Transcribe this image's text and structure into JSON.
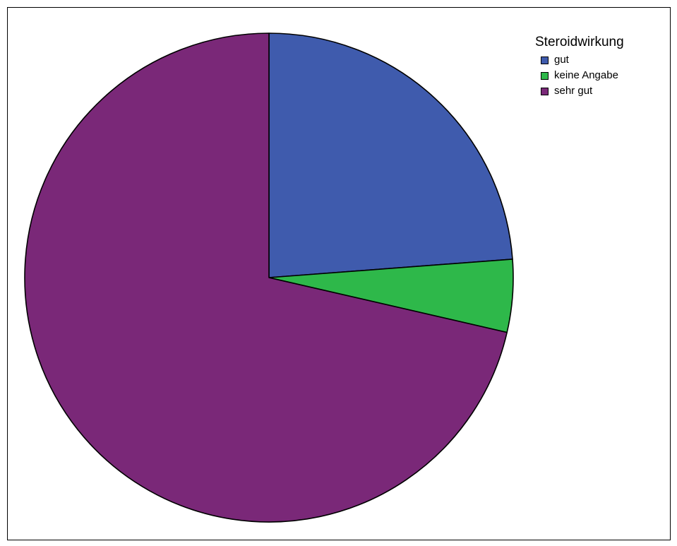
{
  "chart_data": {
    "type": "pie",
    "legend_title": "Steroidwirkung",
    "legend_position": "top-right",
    "start_angle_deg": 0,
    "direction": "clockwise",
    "slices": [
      {
        "label": "gut",
        "value": 23.8,
        "color": "#3F5BAD"
      },
      {
        "label": "keine Angabe",
        "value": 4.8,
        "color": "#2EB84A"
      },
      {
        "label": "sehr gut",
        "value": 71.4,
        "color": "#7A2878"
      }
    ]
  }
}
